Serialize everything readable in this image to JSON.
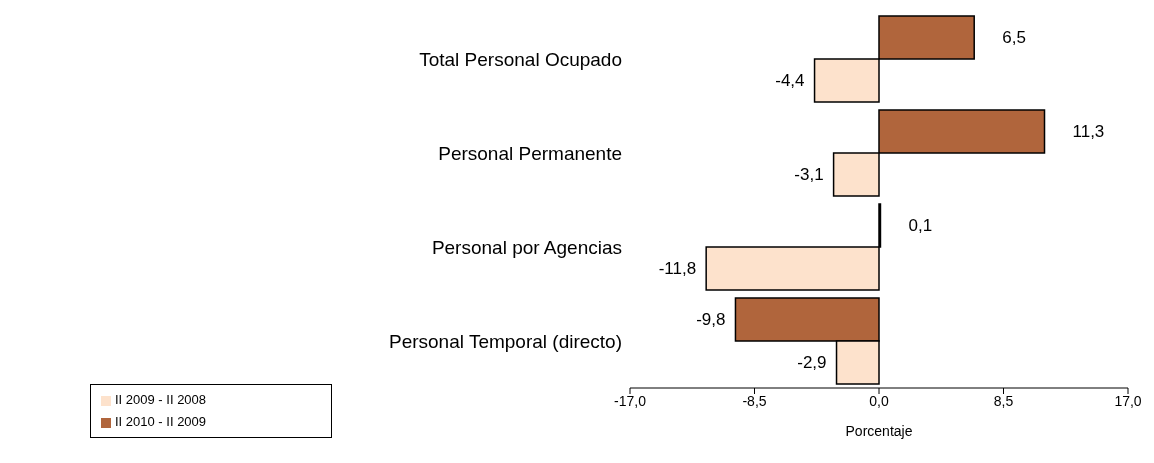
{
  "chart_data": {
    "type": "bar",
    "orientation": "horizontal",
    "xlabel": "Porcentaje",
    "categories": [
      "Total Personal Ocupado",
      "Personal Permanente",
      "Personal por Agencias",
      "Personal Temporal (directo)"
    ],
    "series": [
      {
        "name": "II 2010 - II 2009",
        "color": "#b0653c",
        "values": [
          6.5,
          11.3,
          0.1,
          -9.8
        ],
        "value_labels": [
          "6,5",
          "11,3",
          "0,1",
          "-9,8"
        ]
      },
      {
        "name": "II 2009 - II 2008",
        "color": "#fde2cc",
        "values": [
          -4.4,
          -3.1,
          -11.8,
          -2.9
        ],
        "value_labels": [
          "-4,4",
          "-3,1",
          "-11,8",
          "-2,9"
        ]
      }
    ],
    "xlim": [
      -17,
      17
    ],
    "xticks": [
      {
        "value": -17,
        "label": "-17,0"
      },
      {
        "value": -8.5,
        "label": "-8,5"
      },
      {
        "value": 0,
        "label": "0,0"
      },
      {
        "value": 8.5,
        "label": "8,5"
      },
      {
        "value": 17,
        "label": "17,0"
      }
    ],
    "grid": false,
    "legend": "bottom left"
  }
}
